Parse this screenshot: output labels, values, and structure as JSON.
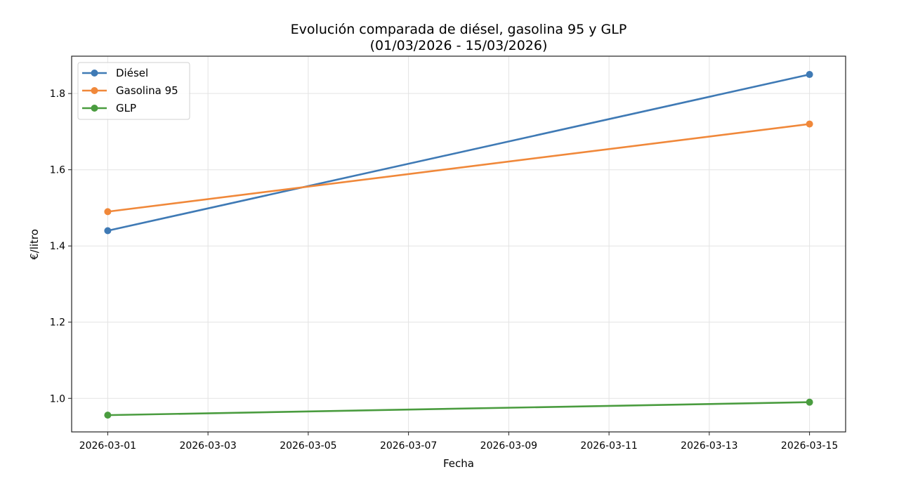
{
  "chart_data": {
    "type": "line",
    "title": "Evolución comparada de diésel, gasolina 95 y GLP",
    "subtitle": "(01/03/2026 - 15/03/2026)",
    "xlabel": "Fecha",
    "ylabel": "€/litro",
    "x": [
      "2026-03-01",
      "2026-03-15"
    ],
    "x_day_index": [
      0,
      14
    ],
    "xticks": [
      "2026-03-01",
      "2026-03-03",
      "2026-03-05",
      "2026-03-07",
      "2026-03-09",
      "2026-03-11",
      "2026-03-13",
      "2026-03-15"
    ],
    "yticks": [
      "1.0",
      "1.2",
      "1.4",
      "1.6",
      "1.8"
    ],
    "ytick_values": [
      1.0,
      1.2,
      1.4,
      1.6,
      1.8
    ],
    "ylim": [
      0.912,
      1.898
    ],
    "xlim_days": [
      -0.72,
      14.72
    ],
    "grid": true,
    "legend_placement": "top-left",
    "series": [
      {
        "name": "Diésel",
        "color": "#3f7ab5",
        "values": [
          1.44,
          1.85
        ]
      },
      {
        "name": "Gasolina 95",
        "color": "#f0883a",
        "values": [
          1.49,
          1.72
        ]
      },
      {
        "name": "GLP",
        "color": "#4a9c3f",
        "values": [
          0.956,
          0.99
        ]
      }
    ]
  }
}
